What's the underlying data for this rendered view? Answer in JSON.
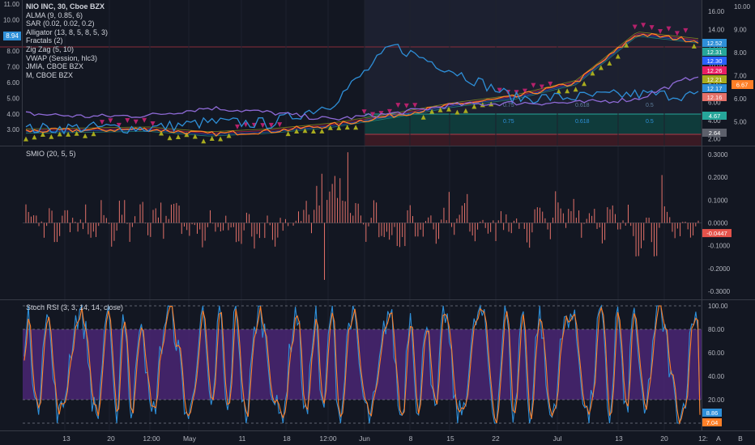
{
  "main_legend": {
    "symbol": "NIO INC, 30, Cboe BZX",
    "indicators": [
      "ALMA (9, 0.85, 6)",
      "SAR (0.02, 0.02, 0.2)",
      "Alligator (13, 8, 5, 8, 5, 3)",
      "Fractals (2)",
      "Zig Zag (5, 10)",
      "VWAP (Session, hlc3)",
      "JMIA, CBOE BZX",
      "M, CBOE BZX"
    ],
    "symbol_badge": "8.94"
  },
  "colors": {
    "background": "#131722",
    "grid": "#1e222d",
    "price": "#ff7f27",
    "compare": "#2e8fd8",
    "sar_up": "#a8ab1e",
    "sar_down": "#b5216b",
    "smio": "#e5726a",
    "stoch_k": "#2e8fd8",
    "stoch_d": "#ff7f27",
    "stoch_band": "#4a2673"
  },
  "fib_labels": [
    "0.75",
    "0.618",
    "0.5",
    "0.75",
    "0.618",
    "0.5"
  ],
  "price_pane": {
    "left_axis": [
      "11.00",
      "10.00",
      "9.00",
      "8.00",
      "7.00",
      "6.00",
      "5.00",
      "4.00",
      "3.00"
    ],
    "right_axis_a": [
      "16.00",
      "14.00",
      "12.00",
      "10.00",
      "8.00",
      "6.00",
      "4.00",
      "2.00"
    ],
    "right_axis_b": [
      "10.00",
      "9.00",
      "8.00",
      "7.00",
      "6.00",
      "5.00"
    ],
    "badges": [
      {
        "text": "12.52",
        "color": "#2e8fd8"
      },
      {
        "text": "12.31",
        "color": "#26a69a"
      },
      {
        "text": "12.30",
        "color": "#2962ff"
      },
      {
        "text": "12.26",
        "color": "#e91e63"
      },
      {
        "text": "12.21",
        "color": "#a8ab1e"
      },
      {
        "text": "12.17",
        "color": "#2e8fd8"
      },
      {
        "text": "12.16",
        "color": "#e5726a"
      },
      {
        "text": "4.67",
        "color": "#26a69a"
      },
      {
        "text": "2.64",
        "color": "#5d606b"
      }
    ],
    "badge_right": {
      "text": "6.67",
      "color": "#ff7f27"
    }
  },
  "smio_pane": {
    "title": "SMIO (20, 5, 5)",
    "axis": [
      "0.3000",
      "0.2000",
      "0.1000",
      "0.0000",
      "-0.1000",
      "-0.2000",
      "-0.3000"
    ],
    "badge": "-0.0447"
  },
  "stoch_pane": {
    "title": "Stoch RSI (3, 3, 14, 14, close)",
    "axis": [
      "100.00",
      "80.00",
      "60.00",
      "40.00",
      "20.00"
    ],
    "badge_k": "8.86",
    "badge_d": "7.04"
  },
  "time_axis": {
    "labels": [
      "13",
      "20",
      "12:00",
      "May",
      "11",
      "18",
      "12:00",
      "Jun",
      "8",
      "15",
      "22",
      "Jul",
      "13",
      "20",
      "12:"
    ]
  },
  "corner_labels": [
    "A",
    "B"
  ],
  "chart_data": [
    {
      "type": "line",
      "title": "NIO INC, 30, Cboe BZX",
      "ylim": [
        2,
        16
      ],
      "x": [
        "13",
        "20",
        "May",
        "11",
        "18",
        "Jun",
        "8",
        "15",
        "22",
        "Jul",
        "13",
        "20"
      ],
      "series": [
        {
          "name": "NIO INC, 30, Cboe BZX",
          "values": [
            3.0,
            3.1,
            3.2,
            2.7,
            3.0,
            3.6,
            4.6,
            5.7,
            6.5,
            8.0,
            13.0,
            12.3
          ]
        },
        {
          "name": "JMIA, CBOE BZX",
          "values": [
            3.2,
            3.4,
            3.3,
            3.9,
            3.8,
            5.8,
            11.8,
            9.2,
            6.4,
            6.5,
            6.8,
            6.67
          ]
        },
        {
          "name": "M, CBOE BZX",
          "values": [
            4.8,
            4.5,
            4.6,
            5.4,
            4.9,
            4.2,
            4.8,
            5.7,
            5.9,
            5.9,
            6.3,
            8.8
          ]
        }
      ]
    },
    {
      "type": "bar",
      "title": "SMIO (20, 5, 5)",
      "ylim": [
        -0.3,
        0.3
      ],
      "x": [
        "13",
        "20",
        "May",
        "11",
        "18",
        "Jun",
        "8",
        "15",
        "22",
        "Jul",
        "13",
        "20"
      ],
      "series": [
        {
          "name": "SMIO (20, 5, 5)",
          "values": [
            0.03,
            -0.05,
            0.08,
            -0.02,
            -0.18,
            0.32,
            -0.11,
            0.09,
            -0.07,
            0.12,
            -0.09,
            -0.0447
          ]
        }
      ]
    },
    {
      "type": "line",
      "title": "Stoch RSI (3, 3, 14, 14, close)",
      "ylim": [
        0,
        100
      ],
      "x": [
        "13",
        "20",
        "May",
        "11",
        "18",
        "Jun",
        "8",
        "15",
        "22",
        "Jul",
        "13",
        "20"
      ],
      "series": [
        {
          "name": "K",
          "values": [
            90,
            20,
            85,
            10,
            75,
            95,
            15,
            80,
            5,
            90,
            60,
            8.86
          ]
        },
        {
          "name": "D",
          "values": [
            85,
            25,
            80,
            15,
            70,
            90,
            20,
            75,
            10,
            85,
            65,
            7.04
          ]
        }
      ]
    }
  ]
}
